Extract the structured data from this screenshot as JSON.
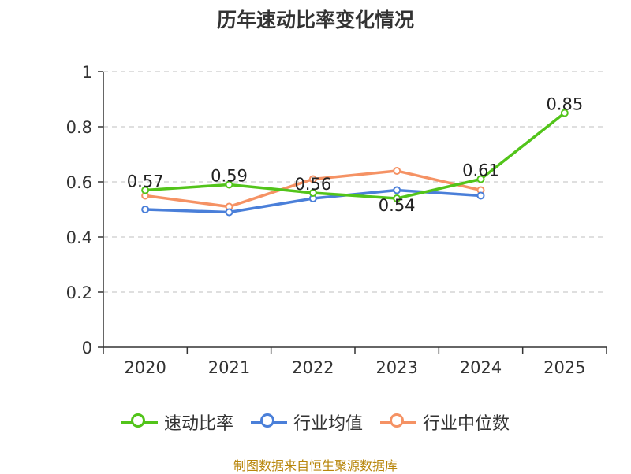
{
  "chart_data": {
    "type": "line",
    "title": "历年速动比率变化情况",
    "categories": [
      "2020",
      "2021",
      "2022",
      "2023",
      "2024",
      "2025"
    ],
    "ylim": [
      0,
      1
    ],
    "yticks": [
      0,
      0.2,
      0.4,
      0.6,
      0.8,
      1
    ],
    "ytick_labels": [
      "0",
      "0.2",
      "0.4",
      "0.6",
      "0.8",
      "1"
    ],
    "grid": true,
    "legend_position": "bottom",
    "series": [
      {
        "name": "速动比率",
        "color": "#52c41a",
        "values": [
          0.57,
          0.59,
          0.56,
          0.54,
          0.61,
          0.85
        ],
        "labels": [
          "0.57",
          "0.59",
          "0.56",
          "0.54",
          "0.61",
          "0.85"
        ]
      },
      {
        "name": "行业均值",
        "color": "#4a7fd9",
        "values": [
          0.5,
          0.49,
          0.54,
          0.57,
          0.55,
          null
        ]
      },
      {
        "name": "行业中位数",
        "color": "#f59264",
        "values": [
          0.55,
          0.51,
          0.61,
          0.64,
          0.57,
          null
        ]
      }
    ]
  },
  "source": "制图数据来自恒生聚源数据库"
}
